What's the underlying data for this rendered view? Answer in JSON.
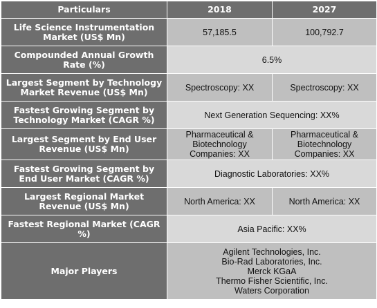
{
  "header": {
    "col1": "Particulars",
    "col2": "2018",
    "col3": "2027"
  },
  "rows": {
    "market": {
      "label": "Life Science Instrumentation Market (US$ Mn)",
      "v2018": "57,185.5",
      "v2027": "100,792.7"
    },
    "cagr": {
      "label": "Compounded Annual Growth Rate (%)",
      "value": "6.5%"
    },
    "largest_tech": {
      "label": "Largest Segment by Technology Market Revenue (US$ Mn)",
      "v2018": "Spectroscopy: XX",
      "v2027": "Spectroscopy: XX"
    },
    "fastest_tech": {
      "label": "Fastest Growing Segment by Technology Market (CAGR %)",
      "value": "Next Generation Sequencing:  XX%"
    },
    "largest_enduser": {
      "label": "Largest Segment by End User Revenue (US$ Mn)",
      "v2018": "Pharmaceutical & Biotechnology Companies: XX",
      "v2027": "Pharmaceutical & Biotechnology Companies:  XX"
    },
    "fastest_enduser": {
      "label": "Fastest Growing Segment by End User Market (CAGR %)",
      "value": "Diagnostic Laboratories:  XX%"
    },
    "largest_region": {
      "label": "Largest Regional Market Revenue (US$ Mn)",
      "v2018": "North America: XX",
      "v2027": "North America: XX"
    },
    "fastest_region": {
      "label": "Fastest Regional Market (CAGR %)",
      "value": "Asia Pacific: XX%"
    },
    "players": {
      "label": "Major Players",
      "names": [
        "Agilent Technologies, Inc.",
        "Bio-Rad Laboratories, Inc.",
        "Merck KGaA",
        "Thermo Fisher Scientific, Inc.",
        "Waters Corporation"
      ]
    }
  }
}
